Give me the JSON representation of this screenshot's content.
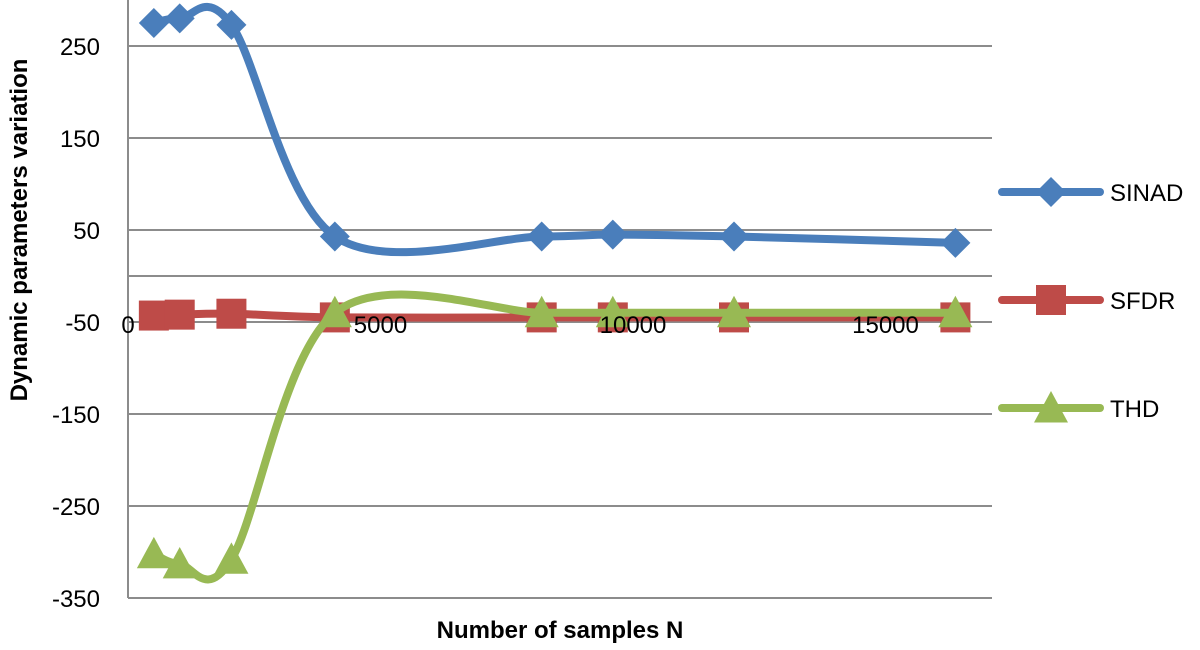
{
  "chart_data": {
    "type": "line",
    "title": "",
    "xlabel": "Number of samples N",
    "ylabel": "Dynamic parameters variation",
    "xlim": [
      0,
      17000
    ],
    "ylim": [
      -350,
      300
    ],
    "xticks": [
      0,
      5000,
      10000,
      15000
    ],
    "yticks": [
      -350,
      -250,
      -150,
      -50,
      50,
      150,
      250
    ],
    "grid": true,
    "legend_position": "right",
    "series": [
      {
        "name": "SINAD",
        "color": "#4a7ebb",
        "marker": "diamond",
        "points": [
          [
            512,
            275
          ],
          [
            1024,
            280
          ],
          [
            2048,
            273
          ],
          [
            4096,
            43
          ],
          [
            8192,
            43
          ],
          [
            9600,
            45
          ],
          [
            12000,
            43
          ],
          [
            16384,
            36
          ]
        ]
      },
      {
        "name": "SFDR",
        "color": "#be4b48",
        "marker": "square",
        "points": [
          [
            512,
            -43
          ],
          [
            1024,
            -42
          ],
          [
            2048,
            -41
          ],
          [
            4096,
            -45
          ],
          [
            8192,
            -45
          ],
          [
            9600,
            -45
          ],
          [
            12000,
            -45
          ],
          [
            16384,
            -45
          ]
        ]
      },
      {
        "name": "THD",
        "color": "#98b954",
        "marker": "triangle",
        "points": [
          [
            512,
            -302
          ],
          [
            1024,
            -313
          ],
          [
            2048,
            -308
          ],
          [
            4096,
            -40
          ],
          [
            8192,
            -40
          ],
          [
            9600,
            -40
          ],
          [
            12000,
            -40
          ],
          [
            16384,
            -40
          ]
        ]
      }
    ]
  }
}
